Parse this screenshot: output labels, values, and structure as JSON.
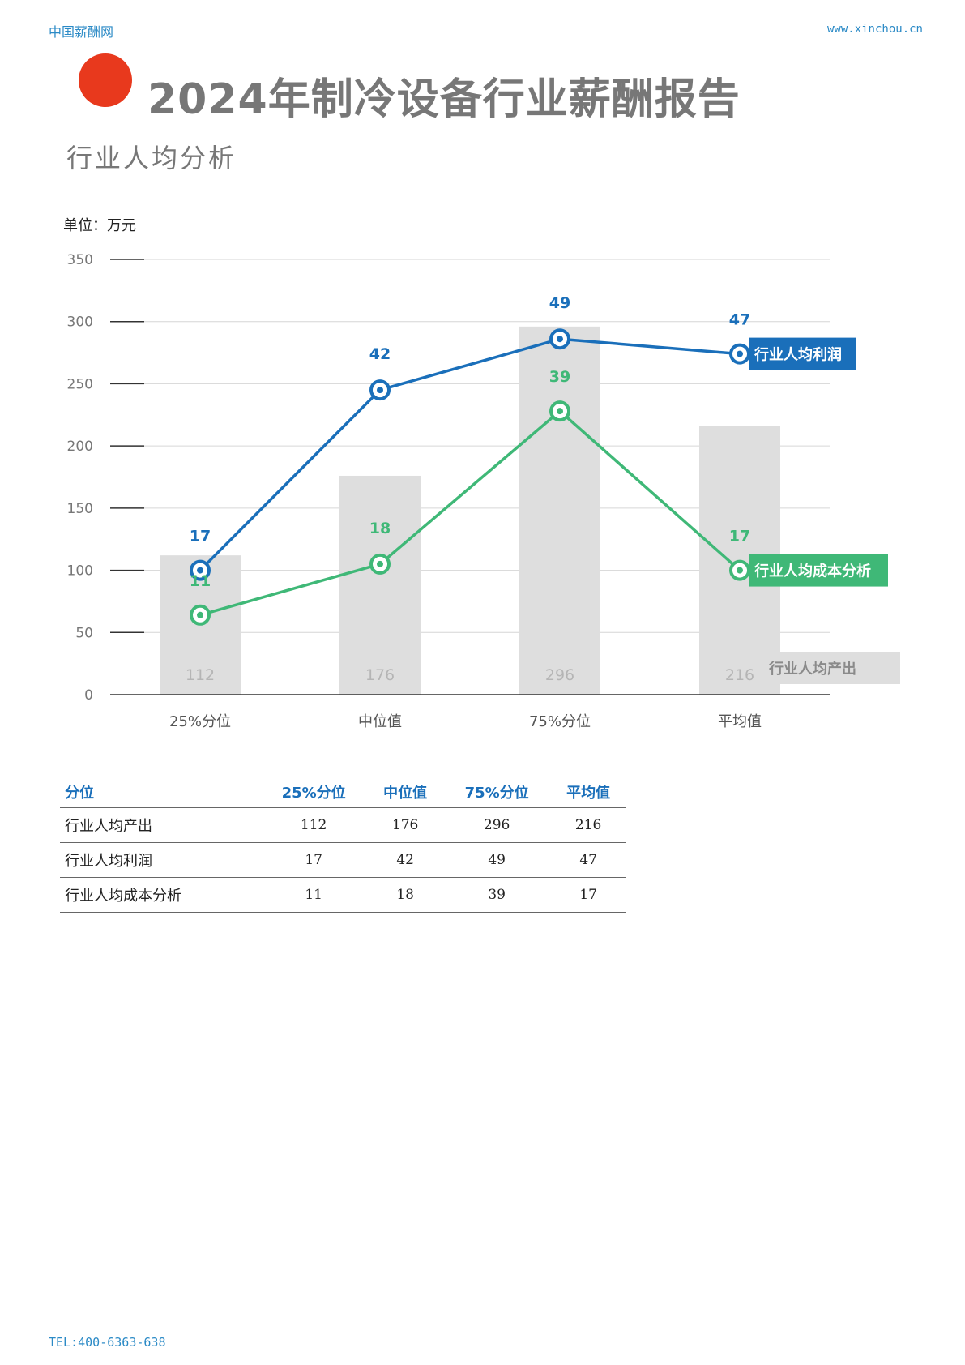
{
  "header": {
    "site_name": "中国薪酬网",
    "site_url": "www.xinchou.cn"
  },
  "page": {
    "title": "2024年制冷设备行业薪酬报告",
    "section_title": "行业人均分析",
    "unit_label": "单位：万元"
  },
  "colors": {
    "bar": "#dedede",
    "profit_line": "#1a6fba",
    "cost_line": "#3fb877",
    "title_gray": "#777777",
    "accent_red": "#e8391d"
  },
  "chart_data": {
    "type": "bar+line",
    "categories": [
      "25%分位",
      "中位值",
      "75%分位",
      "平均值"
    ],
    "ylim": [
      0,
      350
    ],
    "yticks": [
      "0",
      "50",
      "100",
      "150",
      "200",
      "250",
      "300",
      "350"
    ],
    "grid": true,
    "bar_series": {
      "name": "行业人均产出",
      "values": [
        112,
        176,
        296,
        216
      ],
      "labels": [
        "112",
        "176",
        "296",
        "216"
      ]
    },
    "line_series": [
      {
        "name": "行业人均利润",
        "plot_values": [
          100,
          245,
          286,
          274
        ],
        "labels": [
          "17",
          "42",
          "49",
          "47"
        ]
      },
      {
        "name": "行业人均成本分析",
        "plot_values": [
          64,
          105,
          228,
          100
        ],
        "labels": [
          "11",
          "18",
          "39",
          "17"
        ]
      }
    ]
  },
  "table": {
    "headers": [
      "分位",
      "25%分位",
      "中位值",
      "75%分位",
      "平均值"
    ],
    "rows": [
      {
        "label": "行业人均产出",
        "values": [
          "112",
          "176",
          "296",
          "216"
        ]
      },
      {
        "label": "行业人均利润",
        "values": [
          "17",
          "42",
          "49",
          "47"
        ]
      },
      {
        "label": "行业人均成本分析",
        "values": [
          "11",
          "18",
          "39",
          "17"
        ]
      }
    ]
  },
  "footer": {
    "tel": "TEL:400-6363-638"
  }
}
